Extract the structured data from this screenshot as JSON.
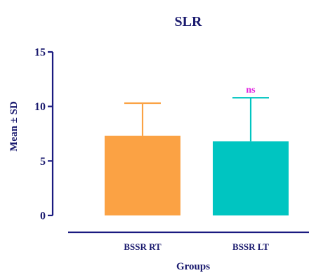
{
  "chart_data": {
    "type": "bar",
    "title": "SLR",
    "xlabel": "Groups",
    "ylabel": "Mean ± SD",
    "categories": [
      "BSSR RT",
      "BSSR LT"
    ],
    "values": [
      7.3,
      6.8
    ],
    "errors": [
      3.0,
      4.0
    ],
    "bar_colors": [
      "#FBA244",
      "#00C5C1"
    ],
    "ylim": [
      0,
      15
    ],
    "yticks": [
      "0",
      "5",
      "10",
      "15"
    ],
    "annotation": "ns",
    "annotation_color": "#E020E0",
    "axis_color": "#1A1A80",
    "text_color": "#1A1A6E",
    "grid": false
  }
}
